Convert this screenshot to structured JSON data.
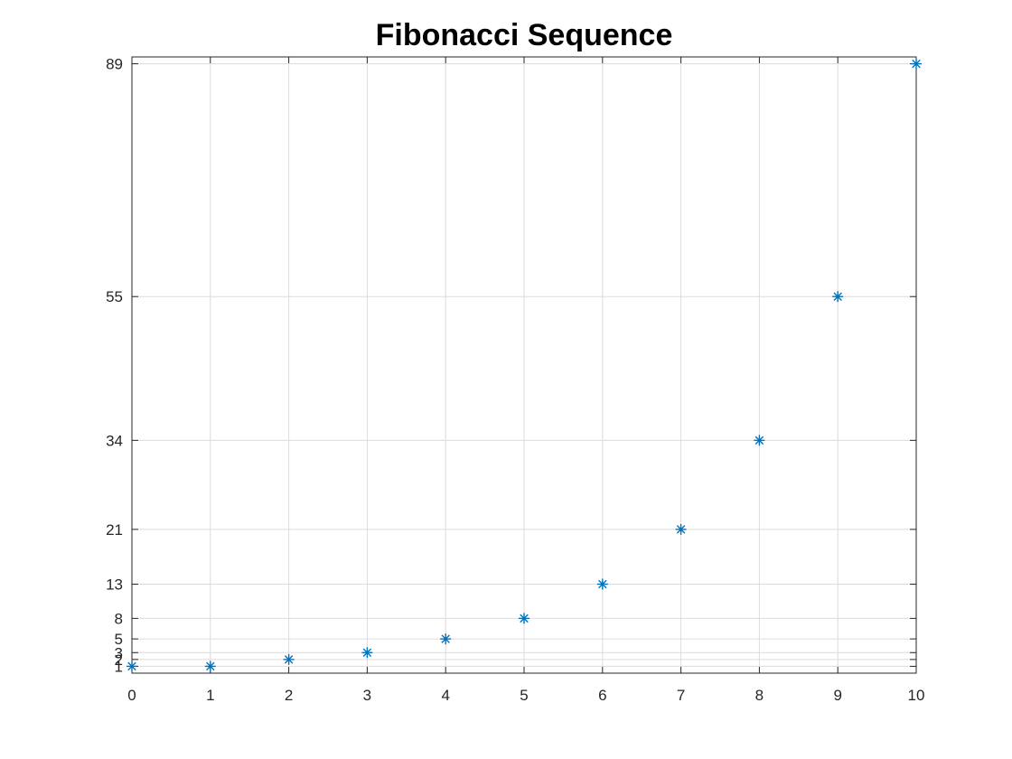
{
  "chart_data": {
    "type": "scatter",
    "title": "Fibonacci Sequence",
    "xlabel": "",
    "ylabel": "",
    "x": [
      0,
      1,
      2,
      3,
      4,
      5,
      6,
      7,
      8,
      9,
      10
    ],
    "y": [
      1,
      1,
      2,
      3,
      5,
      8,
      13,
      21,
      34,
      55,
      89
    ],
    "xlim": [
      0,
      10
    ],
    "ylim": [
      0,
      90
    ],
    "xticks": [
      0,
      1,
      2,
      3,
      4,
      5,
      6,
      7,
      8,
      9,
      10
    ],
    "yticks": [
      1,
      2,
      3,
      5,
      8,
      13,
      21,
      34,
      55,
      89
    ],
    "marker": "asterisk",
    "marker_color": "#0072bd",
    "grid": true,
    "box": true
  }
}
